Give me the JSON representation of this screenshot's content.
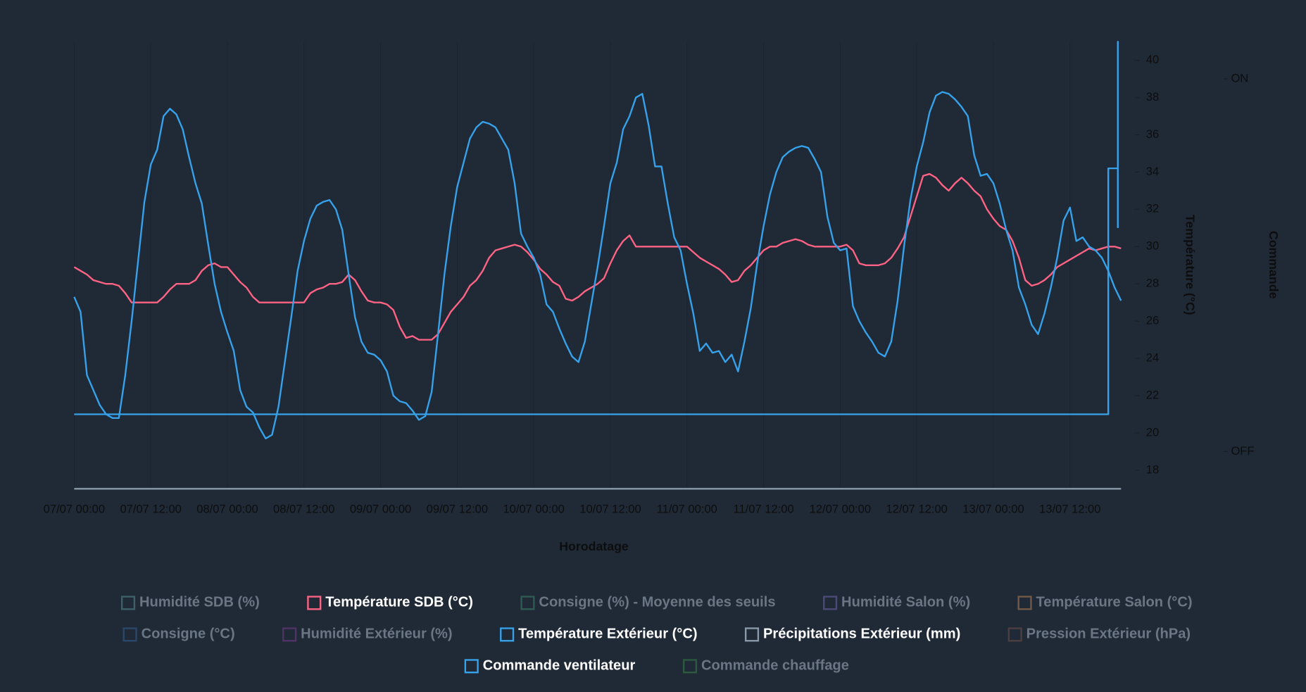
{
  "chart_data": {
    "type": "line",
    "x_label": "Horodatage",
    "y_label": "Température (°C)",
    "y2_label": "Commande",
    "grid": true,
    "x": [
      "07/07 00:00",
      "07/07 01:00",
      "07/07 02:00",
      "07/07 03:00",
      "07/07 04:00",
      "07/07 05:00",
      "07/07 06:00",
      "07/07 07:00",
      "07/07 08:00",
      "07/07 09:00",
      "07/07 10:00",
      "07/07 11:00",
      "07/07 12:00",
      "07/07 13:00",
      "07/07 14:00",
      "07/07 15:00",
      "07/07 16:00",
      "07/07 17:00",
      "07/07 18:00",
      "07/07 19:00",
      "07/07 20:00",
      "07/07 21:00",
      "07/07 22:00",
      "07/07 23:00",
      "08/07 00:00",
      "08/07 01:00",
      "08/07 02:00",
      "08/07 03:00",
      "08/07 04:00",
      "08/07 05:00",
      "08/07 06:00",
      "08/07 07:00",
      "08/07 08:00",
      "08/07 09:00",
      "08/07 10:00",
      "08/07 11:00",
      "08/07 12:00",
      "08/07 13:00",
      "08/07 14:00",
      "08/07 15:00",
      "08/07 16:00",
      "08/07 17:00",
      "08/07 18:00",
      "08/07 19:00",
      "08/07 20:00",
      "08/07 21:00",
      "08/07 22:00",
      "08/07 23:00",
      "09/07 00:00",
      "09/07 01:00",
      "09/07 02:00",
      "09/07 03:00",
      "09/07 04:00",
      "09/07 05:00",
      "09/07 06:00",
      "09/07 07:00",
      "09/07 08:00",
      "09/07 09:00",
      "09/07 10:00",
      "09/07 11:00",
      "09/07 12:00",
      "09/07 13:00",
      "09/07 14:00",
      "09/07 15:00",
      "09/07 16:00",
      "09/07 17:00",
      "09/07 18:00",
      "09/07 19:00",
      "09/07 20:00",
      "09/07 21:00",
      "09/07 22:00",
      "09/07 23:00",
      "10/07 00:00",
      "10/07 01:00",
      "10/07 02:00",
      "10/07 03:00",
      "10/07 04:00",
      "10/07 05:00",
      "10/07 06:00",
      "10/07 07:00",
      "10/07 08:00",
      "10/07 09:00",
      "10/07 10:00",
      "10/07 11:00",
      "10/07 12:00",
      "10/07 13:00",
      "10/07 14:00",
      "10/07 15:00",
      "10/07 16:00",
      "10/07 17:00",
      "10/07 18:00",
      "10/07 19:00",
      "10/07 20:00",
      "10/07 21:00",
      "10/07 22:00",
      "10/07 23:00",
      "11/07 00:00",
      "11/07 01:00",
      "11/07 02:00",
      "11/07 03:00",
      "11/07 04:00",
      "11/07 05:00",
      "11/07 06:00",
      "11/07 07:00",
      "11/07 08:00",
      "11/07 09:00",
      "11/07 10:00",
      "11/07 11:00",
      "11/07 12:00",
      "11/07 13:00",
      "11/07 14:00",
      "11/07 15:00",
      "11/07 16:00",
      "11/07 17:00",
      "11/07 18:00",
      "11/07 19:00",
      "11/07 20:00",
      "11/07 21:00",
      "11/07 22:00",
      "11/07 23:00",
      "12/07 00:00",
      "12/07 01:00",
      "12/07 02:00",
      "12/07 03:00",
      "12/07 04:00",
      "12/07 05:00",
      "12/07 06:00",
      "12/07 07:00",
      "12/07 08:00",
      "12/07 09:00",
      "12/07 10:00",
      "12/07 11:00",
      "12/07 12:00",
      "12/07 13:00",
      "12/07 14:00",
      "12/07 15:00",
      "12/07 16:00",
      "12/07 17:00",
      "12/07 18:00",
      "12/07 19:00",
      "12/07 20:00",
      "12/07 21:00",
      "12/07 22:00",
      "12/07 23:00",
      "13/07 00:00",
      "13/07 01:00",
      "13/07 02:00",
      "13/07 03:00",
      "13/07 04:00",
      "13/07 05:00",
      "13/07 06:00",
      "13/07 07:00",
      "13/07 08:00",
      "13/07 09:00",
      "13/07 10:00",
      "13/07 11:00",
      "13/07 12:00",
      "13/07 13:00",
      "13/07 14:00",
      "13/07 15:00",
      "13/07 16:00",
      "13/07 17:00",
      "13/07 18:00",
      "13/07 19:00",
      "13/07 20:00"
    ],
    "xlim": [
      "07/07 00:00",
      "13/07 20:00"
    ],
    "xticks": [
      "07/07 00:00",
      "07/07 12:00",
      "08/07 00:00",
      "08/07 12:00",
      "09/07 00:00",
      "09/07 12:00",
      "10/07 00:00",
      "10/07 12:00",
      "11/07 00:00",
      "11/07 12:00",
      "12/07 00:00",
      "12/07 12:00",
      "13/07 00:00",
      "13/07 12:00"
    ],
    "ylim": [
      17,
      41
    ],
    "yticks": [
      18,
      20,
      22,
      24,
      26,
      28,
      30,
      32,
      34,
      36,
      38,
      40
    ],
    "y2lim": [
      -0.1,
      1.1
    ],
    "y2ticks": [
      {
        "value": 0,
        "label": "OFF"
      },
      {
        "value": 1,
        "label": "ON"
      }
    ],
    "y3lim": [
      0,
      10
    ],
    "series": [
      {
        "name": "Humidité SDB (%)",
        "color": "#3e6068",
        "hidden": true
      },
      {
        "name": "Température SDB (°C)",
        "color": "#ff6384",
        "values": [
          28.9,
          28.7,
          28.5,
          28.2,
          28.1,
          28.0,
          28.0,
          27.9,
          27.5,
          27.0,
          27.0,
          27.0,
          27.0,
          27.0,
          27.3,
          27.7,
          28.0,
          28.0,
          28.0,
          28.2,
          28.7,
          29.0,
          29.1,
          28.9,
          28.9,
          28.5,
          28.1,
          27.8,
          27.3,
          27.0,
          27.0,
          27.0,
          27.0,
          27.0,
          27.0,
          27.0,
          27.0,
          27.5,
          27.7,
          27.8,
          28.0,
          28.0,
          28.1,
          28.5,
          28.2,
          27.6,
          27.1,
          27.0,
          27.0,
          26.9,
          26.6,
          25.7,
          25.1,
          25.2,
          25.0,
          25.0,
          25.0,
          25.3,
          25.9,
          26.5,
          26.9,
          27.3,
          27.9,
          28.2,
          28.7,
          29.4,
          29.8,
          29.9,
          30.0,
          30.1,
          30.0,
          29.7,
          29.3,
          28.8,
          28.5,
          28.1,
          27.9,
          27.2,
          27.1,
          27.3,
          27.6,
          27.8,
          28.0,
          28.3,
          29.1,
          29.8,
          30.3,
          30.6,
          30.0,
          30.0,
          30.0,
          30.0,
          30.0,
          30.0,
          30.0,
          30.0,
          30.0,
          29.7,
          29.4,
          29.2,
          29.0,
          28.8,
          28.5,
          28.1,
          28.2,
          28.7,
          29.0,
          29.4,
          29.8,
          30.0,
          30.0,
          30.2,
          30.3,
          30.4,
          30.3,
          30.1,
          30.0,
          30.0,
          30.0,
          30.0,
          30.0,
          30.1,
          29.8,
          29.1,
          29.0,
          29.0,
          29.0,
          29.1,
          29.4,
          29.9,
          30.5,
          31.6,
          32.7,
          33.8,
          33.9,
          33.7,
          33.3,
          33.0,
          33.4,
          33.7,
          33.4,
          33.0,
          32.7,
          32.0,
          31.5,
          31.1,
          30.9,
          30.3,
          29.4,
          28.2,
          27.9,
          28.0,
          28.2,
          28.5,
          28.9,
          29.1,
          29.3,
          29.5,
          29.7,
          29.9,
          29.8,
          29.9,
          30.0,
          30.0,
          29.9
        ]
      },
      {
        "name": "Consigne (%) - Moyenne des seuils",
        "color": "#2e5c52",
        "hidden": true
      },
      {
        "name": "Humidité Salon (%)",
        "color": "#4d4a78",
        "hidden": true
      },
      {
        "name": "Température Salon (°C)",
        "color": "#735a46",
        "hidden": true
      },
      {
        "name": "Consigne (°C)",
        "color": "#2c4868",
        "hidden": true
      },
      {
        "name": "Humidité Extérieur (%)",
        "color": "#4f3468",
        "hidden": true
      },
      {
        "name": "Température Extérieur (°C)",
        "color": "#36a2eb",
        "values": [
          27.3,
          26.5,
          23.1,
          22.3,
          21.5,
          21.0,
          20.8,
          20.8,
          23.1,
          26.0,
          29.2,
          32.4,
          34.4,
          35.2,
          37.0,
          37.4,
          37.1,
          36.3,
          34.8,
          33.4,
          32.3,
          30.1,
          28.0,
          26.5,
          25.4,
          24.4,
          22.3,
          21.4,
          21.1,
          20.3,
          19.7,
          19.9,
          21.4,
          23.8,
          26.2,
          28.7,
          30.3,
          31.5,
          32.2,
          32.4,
          32.5,
          32.0,
          30.9,
          28.5,
          26.2,
          24.9,
          24.3,
          24.2,
          23.9,
          23.3,
          22.0,
          21.7,
          21.6,
          21.2,
          20.7,
          20.9,
          22.2,
          25.3,
          28.5,
          31.1,
          33.2,
          34.5,
          35.8,
          36.4,
          36.7,
          36.6,
          36.4,
          35.8,
          35.2,
          33.4,
          30.7,
          30.0,
          29.4,
          28.5,
          26.9,
          26.5,
          25.6,
          24.8,
          24.1,
          23.8,
          24.9,
          26.9,
          28.9,
          31.1,
          33.4,
          34.5,
          36.3,
          37.0,
          38.0,
          38.2,
          36.5,
          34.3,
          34.3,
          32.3,
          30.5,
          29.8,
          28.0,
          26.4,
          24.4,
          24.8,
          24.3,
          24.4,
          23.8,
          24.2,
          23.3,
          24.9,
          26.7,
          29.1,
          31.1,
          32.8,
          34.0,
          34.8,
          35.1,
          35.3,
          35.4,
          35.3,
          34.7,
          34.0,
          31.6,
          30.2,
          29.8,
          29.9,
          26.8,
          26.0,
          25.4,
          24.9,
          24.3,
          24.1,
          24.9,
          27.1,
          30.0,
          32.5,
          34.3,
          35.6,
          37.2,
          38.1,
          38.3,
          38.2,
          37.9,
          37.5,
          37.0,
          34.9,
          33.8,
          33.9,
          33.4,
          32.3,
          30.9,
          29.8,
          27.8,
          26.9,
          25.8,
          25.3,
          26.4,
          27.8,
          29.4,
          31.4,
          32.1,
          30.3,
          30.5,
          30.0,
          29.8,
          29.4,
          28.7,
          27.8,
          27.1
        ]
      },
      {
        "name": "Précipitations Extérieur (mm)",
        "color": "#8a9aa8",
        "axis": "y3",
        "x": [
          "07/07 00:00",
          "13/07 20:00"
        ],
        "values": [
          0,
          0
        ]
      },
      {
        "name": "Pression Extérieur (hPa)",
        "color": "#4d3f40",
        "hidden": true
      },
      {
        "name": "Commande ventilateur",
        "color": "#36a2eb",
        "axis": "y2",
        "x": [
          "07/07 00:00",
          "13/07 18:00",
          "13/07 18:00",
          "13/07 19:30",
          "13/07 19:30",
          "13/07 19:30"
        ],
        "values": [
          0.1,
          0.1,
          0.76,
          0.76,
          1.1,
          0.6
        ]
      },
      {
        "name": "Commande chauffage",
        "color": "#2c5a3e",
        "hidden": true
      }
    ]
  }
}
